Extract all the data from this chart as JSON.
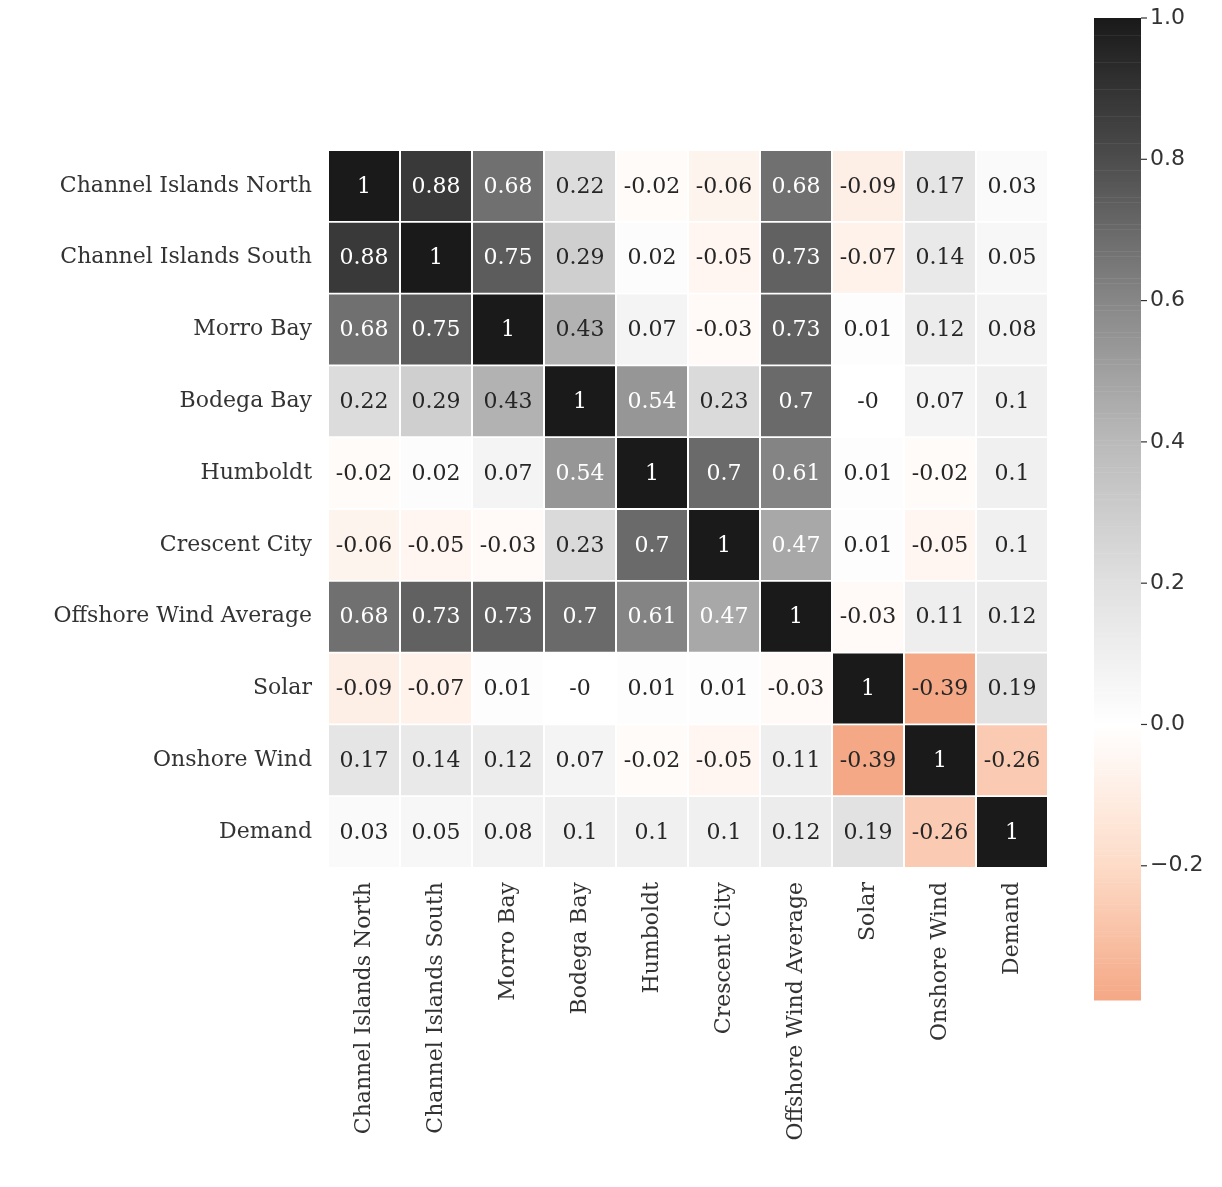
{
  "chart_data": {
    "type": "heatmap",
    "categories": [
      "Channel Islands North",
      "Channel Islands South",
      "Morro Bay",
      "Bodega Bay",
      "Humboldt",
      "Crescent City",
      "Offshore Wind Average",
      "Solar",
      "Onshore Wind",
      "Demand"
    ],
    "y_categories": [
      "Channel Islands North",
      "Channel Islands South",
      "Morro Bay",
      "Bodega Bay",
      "Humboldt",
      "Crescent City",
      "Offshore Wind Average",
      "Solar",
      "Onshore Wind",
      "Demand"
    ],
    "cells": [
      [
        1,
        0.88,
        0.68,
        0.22,
        -0.02,
        -0.06,
        0.68,
        -0.09,
        0.17,
        0.03
      ],
      [
        0.88,
        1,
        0.75,
        0.29,
        0.02,
        -0.05,
        0.73,
        -0.07,
        0.14,
        0.05
      ],
      [
        0.68,
        0.75,
        1,
        0.43,
        0.07,
        -0.03,
        0.73,
        0.01,
        0.12,
        0.08
      ],
      [
        0.22,
        0.29,
        0.43,
        1,
        0.54,
        0.23,
        0.7,
        0,
        0.07,
        0.1
      ],
      [
        -0.02,
        0.02,
        0.07,
        0.54,
        1,
        0.7,
        0.61,
        0.01,
        -0.02,
        0.1
      ],
      [
        -0.06,
        -0.05,
        -0.03,
        0.23,
        0.7,
        1,
        0.47,
        0.01,
        -0.05,
        0.1
      ],
      [
        0.68,
        0.73,
        0.73,
        0.7,
        0.61,
        0.47,
        1,
        -0.03,
        0.11,
        0.12
      ],
      [
        -0.09,
        -0.07,
        0.01,
        0,
        0.01,
        0.01,
        -0.03,
        1,
        -0.39,
        0.19
      ],
      [
        0.17,
        0.14,
        0.12,
        0.07,
        -0.02,
        -0.05,
        0.11,
        -0.39,
        1,
        -0.26
      ],
      [
        0.03,
        0.05,
        0.08,
        0.1,
        0.1,
        0.1,
        0.12,
        0.19,
        -0.26,
        1
      ]
    ],
    "cell_labels": [
      [
        "1",
        "0.88",
        "0.68",
        "0.22",
        "-0.02",
        "-0.06",
        "0.68",
        "-0.09",
        "0.17",
        "0.03"
      ],
      [
        "0.88",
        "1",
        "0.75",
        "0.29",
        "0.02",
        "-0.05",
        "0.73",
        "-0.07",
        "0.14",
        "0.05"
      ],
      [
        "0.68",
        "0.75",
        "1",
        "0.43",
        "0.07",
        "-0.03",
        "0.73",
        "0.01",
        "0.12",
        "0.08"
      ],
      [
        "0.22",
        "0.29",
        "0.43",
        "1",
        "0.54",
        "0.23",
        "0.7",
        "-0",
        "0.07",
        "0.1"
      ],
      [
        "-0.02",
        "0.02",
        "0.07",
        "0.54",
        "1",
        "0.7",
        "0.61",
        "0.01",
        "-0.02",
        "0.1"
      ],
      [
        "-0.06",
        "-0.05",
        "-0.03",
        "0.23",
        "0.7",
        "1",
        "0.47",
        "0.01",
        "-0.05",
        "0.1"
      ],
      [
        "0.68",
        "0.73",
        "0.73",
        "0.7",
        "0.61",
        "0.47",
        "1",
        "-0.03",
        "0.11",
        "0.12"
      ],
      [
        "-0.09",
        "-0.07",
        "0.01",
        "-0",
        "0.01",
        "0.01",
        "-0.03",
        "1",
        "-0.39",
        "0.19"
      ],
      [
        "0.17",
        "0.14",
        "0.12",
        "0.07",
        "-0.02",
        "-0.05",
        "0.11",
        "-0.39",
        "1",
        "-0.26"
      ],
      [
        "0.03",
        "0.05",
        "0.08",
        "0.1",
        "0.1",
        "0.1",
        "0.12",
        "0.19",
        "-0.26",
        "1"
      ]
    ],
    "data_labels": true,
    "clim": [
      -0.39,
      1.0
    ],
    "cticks": [
      {
        "value": -0.2,
        "label": "−0.2"
      },
      {
        "value": 0,
        "label": "0.0"
      },
      {
        "value": 0.2,
        "label": "0.2"
      },
      {
        "value": 0.4,
        "label": "0.4"
      },
      {
        "value": 0.6,
        "label": "0.6"
      },
      {
        "value": 0.8,
        "label": "0.8"
      },
      {
        "value": 1,
        "label": "1.0"
      }
    ]
  }
}
